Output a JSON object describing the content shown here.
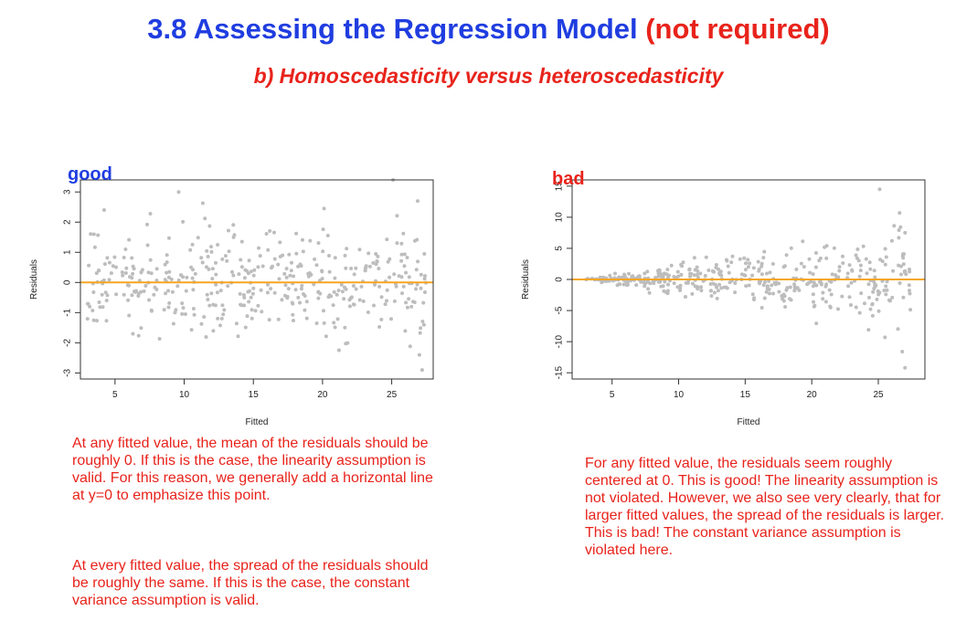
{
  "slide": {
    "title_main": "3.8 Assessing the Regression Model",
    "title_note": "(not required)",
    "subtitle": "b) Homoscedasticity versus heteroscedasticity"
  },
  "left_panel": {
    "tag": "good",
    "text_1": "At any fitted value, the mean of the residuals should be roughly 0. If this is the case, the linearity assumption is valid. For this reason, we generally add a horizontal line at y=0 to emphasize this point.",
    "text_2": "At every fitted value, the spread of the residuals should be roughly the same. If this is the case, the constant variance assumption is valid."
  },
  "right_panel": {
    "tag": "bad",
    "text": "For any fitted value, the residuals seem roughly centered at 0. This is good! The linearity assumption is not violated. However, we also see very clearly, that for larger fitted values, the spread of the residuals is larger. This is bad! The constant variance assumption is violated here."
  },
  "chart_data": [
    {
      "type": "scatter",
      "title": "",
      "xlabel": "Fitted",
      "ylabel": "Residuals",
      "xlim": [
        2.5,
        28
      ],
      "ylim": [
        -3.2,
        3.4
      ],
      "xticks": [
        5,
        10,
        15,
        20,
        25
      ],
      "yticks": [
        -3,
        -2,
        -1,
        0,
        1,
        2,
        3
      ],
      "hline": 0,
      "hline_color": "#f5a623",
      "point_color": "#bdbdbd",
      "x_range": [
        3,
        27.5
      ],
      "spread": "constant",
      "n_points": 420,
      "notable_points": [
        [
          9.6,
          3.0
        ],
        [
          25.1,
          3.4
        ],
        [
          27.2,
          -2.9
        ],
        [
          27.0,
          -2.4
        ]
      ]
    },
    {
      "type": "scatter",
      "title": "",
      "xlabel": "Fitted",
      "ylabel": "Residuals",
      "xlim": [
        2,
        28.5
      ],
      "ylim": [
        -16,
        16
      ],
      "xticks": [
        5,
        10,
        15,
        20,
        25
      ],
      "yticks": [
        -15,
        -10,
        -5,
        0,
        5,
        10,
        15
      ],
      "hline": 0,
      "hline_color": "#f5a623",
      "point_color": "#bdbdbd",
      "x_range": [
        3,
        27.5
      ],
      "spread": "increasing",
      "n_points": 420,
      "notable_points": [
        [
          25.1,
          14.5
        ],
        [
          26.6,
          10.7
        ],
        [
          27.0,
          -14.2
        ],
        [
          26.8,
          -11.6
        ],
        [
          25.5,
          -9.3
        ]
      ]
    }
  ]
}
